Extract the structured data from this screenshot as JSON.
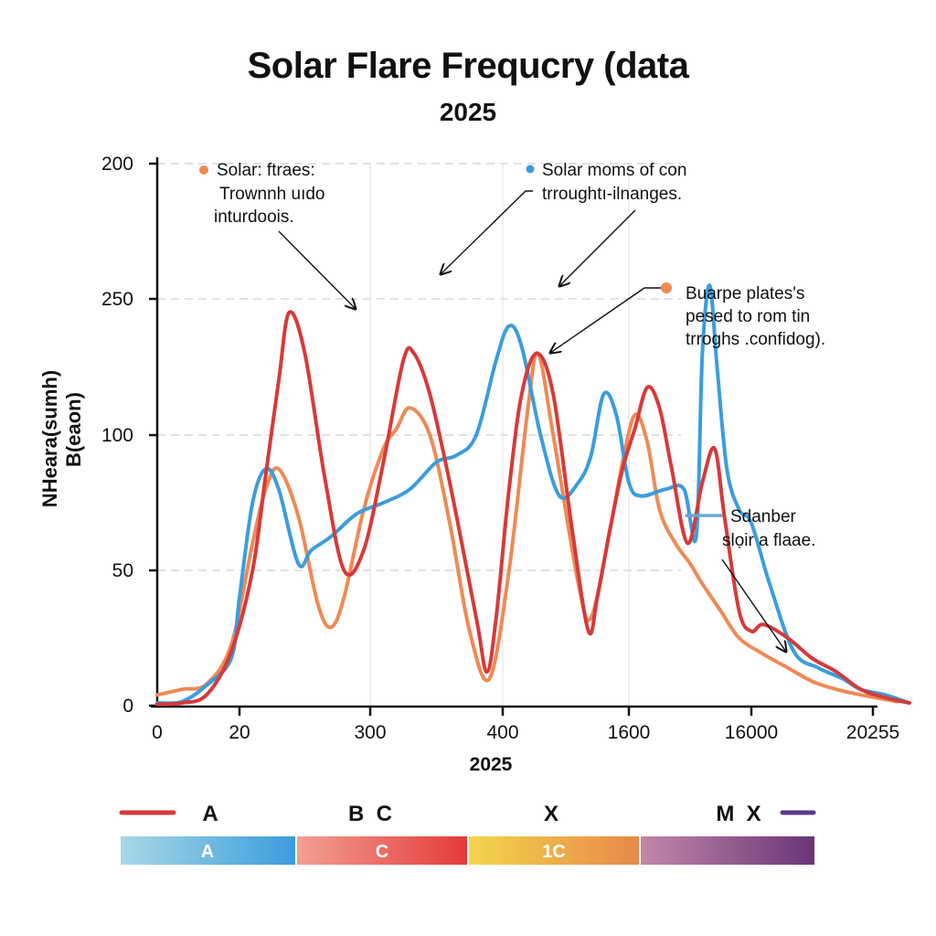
{
  "title": "Solar Flare Frequcry (data",
  "subtitle": "2025",
  "chart_data": {
    "type": "line",
    "title": "Solar Flare Frequcry (data",
    "subtitle": "2025",
    "xlabel": "2025",
    "ylabel_lines": [
      "NHeara(sumh)",
      "B(eaon)"
    ],
    "x_ticks": [
      "0",
      "20",
      "300",
      "400",
      "1600",
      "16000",
      "20255"
    ],
    "y_ticks": [
      "0",
      "50",
      "100",
      "250",
      "200"
    ],
    "axis_note": "Tick labels are non-monotonic; series points are given as [x_tick_index, y_tick_index] positions along each axis.",
    "grid": true,
    "xlim_index": [
      0,
      6.3
    ],
    "ylim_index": [
      0,
      4
    ],
    "series": [
      {
        "name": "Red",
        "color": "#d63a3a",
        "points": [
          [
            0,
            0.01
          ],
          [
            0.3,
            0.02
          ],
          [
            0.6,
            0.08
          ],
          [
            0.9,
            0.4
          ],
          [
            1.1,
            1.0
          ],
          [
            1.2,
            1.7
          ],
          [
            1.3,
            2.4
          ],
          [
            1.38,
            2.9
          ],
          [
            1.5,
            2.6
          ],
          [
            1.65,
            1.7
          ],
          [
            1.8,
            1.0
          ],
          [
            1.95,
            1.15
          ],
          [
            2.1,
            1.8
          ],
          [
            2.25,
            2.55
          ],
          [
            2.33,
            2.6
          ],
          [
            2.45,
            2.3
          ],
          [
            2.6,
            1.65
          ],
          [
            2.8,
            0.65
          ],
          [
            2.88,
            0.25
          ],
          [
            2.95,
            0.65
          ],
          [
            3.05,
            1.6
          ],
          [
            3.15,
            2.3
          ],
          [
            3.27,
            2.6
          ],
          [
            3.4,
            2.3
          ],
          [
            3.55,
            1.3
          ],
          [
            3.68,
            0.55
          ],
          [
            3.75,
            0.8
          ],
          [
            3.85,
            1.3
          ],
          [
            3.95,
            1.75
          ],
          [
            4.05,
            2.05
          ],
          [
            4.15,
            2.35
          ],
          [
            4.25,
            2.2
          ],
          [
            4.35,
            1.75
          ],
          [
            4.48,
            1.2
          ],
          [
            4.6,
            1.65
          ],
          [
            4.7,
            1.9
          ],
          [
            4.78,
            1.4
          ],
          [
            4.9,
            0.7
          ],
          [
            5.0,
            0.55
          ],
          [
            5.1,
            0.6
          ],
          [
            5.3,
            0.5
          ],
          [
            5.5,
            0.35
          ],
          [
            5.7,
            0.25
          ],
          [
            5.9,
            0.12
          ],
          [
            6.1,
            0.06
          ],
          [
            6.3,
            0.02
          ]
        ]
      },
      {
        "name": "Orange",
        "color": "#ee8a55",
        "points": [
          [
            0,
            0.08
          ],
          [
            0.3,
            0.12
          ],
          [
            0.6,
            0.16
          ],
          [
            0.9,
            0.45
          ],
          [
            1.1,
            1.2
          ],
          [
            1.2,
            1.6
          ],
          [
            1.3,
            1.75
          ],
          [
            1.45,
            1.4
          ],
          [
            1.6,
            0.75
          ],
          [
            1.7,
            0.58
          ],
          [
            1.8,
            0.8
          ],
          [
            1.95,
            1.45
          ],
          [
            2.1,
            1.9
          ],
          [
            2.2,
            2.05
          ],
          [
            2.3,
            2.2
          ],
          [
            2.45,
            2.0
          ],
          [
            2.6,
            1.35
          ],
          [
            2.75,
            0.55
          ],
          [
            2.9,
            0.2
          ],
          [
            3.05,
            1.0
          ],
          [
            3.2,
            2.2
          ],
          [
            3.28,
            2.6
          ],
          [
            3.4,
            2.0
          ],
          [
            3.6,
            0.9
          ],
          [
            3.7,
            0.65
          ],
          [
            3.85,
            1.3
          ],
          [
            3.95,
            1.8
          ],
          [
            4.05,
            2.15
          ],
          [
            4.15,
            1.95
          ],
          [
            4.25,
            1.45
          ],
          [
            4.38,
            1.2
          ],
          [
            4.5,
            1.05
          ],
          [
            4.6,
            0.9
          ],
          [
            4.75,
            0.7
          ],
          [
            4.9,
            0.5
          ],
          [
            5.1,
            0.38
          ],
          [
            5.3,
            0.28
          ],
          [
            5.5,
            0.18
          ],
          [
            5.7,
            0.12
          ],
          [
            5.9,
            0.08
          ],
          [
            6.2,
            0.03
          ]
        ]
      },
      {
        "name": "Blue",
        "color": "#3b9ddd",
        "points": [
          [
            0,
            0.02
          ],
          [
            0.3,
            0.03
          ],
          [
            0.6,
            0.15
          ],
          [
            0.9,
            0.35
          ],
          [
            1.0,
            0.8
          ],
          [
            1.1,
            1.5
          ],
          [
            1.2,
            1.75
          ],
          [
            1.3,
            1.6
          ],
          [
            1.45,
            1.05
          ],
          [
            1.55,
            1.15
          ],
          [
            1.7,
            1.25
          ],
          [
            1.9,
            1.42
          ],
          [
            2.1,
            1.5
          ],
          [
            2.3,
            1.6
          ],
          [
            2.5,
            1.8
          ],
          [
            2.65,
            1.85
          ],
          [
            2.8,
            2.0
          ],
          [
            2.95,
            2.55
          ],
          [
            3.05,
            2.8
          ],
          [
            3.15,
            2.65
          ],
          [
            3.3,
            2.0
          ],
          [
            3.45,
            1.55
          ],
          [
            3.6,
            1.65
          ],
          [
            3.7,
            1.85
          ],
          [
            3.8,
            2.3
          ],
          [
            3.9,
            2.15
          ],
          [
            4.0,
            1.65
          ],
          [
            4.1,
            1.55
          ],
          [
            4.3,
            1.6
          ],
          [
            4.45,
            1.6
          ],
          [
            4.55,
            1.25
          ],
          [
            4.6,
            2.6
          ],
          [
            4.66,
            3.1
          ],
          [
            4.72,
            2.5
          ],
          [
            4.8,
            1.75
          ],
          [
            4.9,
            1.45
          ],
          [
            5.0,
            1.35
          ],
          [
            5.15,
            0.9
          ],
          [
            5.35,
            0.4
          ],
          [
            5.55,
            0.28
          ],
          [
            5.75,
            0.2
          ],
          [
            5.9,
            0.12
          ],
          [
            6.1,
            0.08
          ],
          [
            6.3,
            0.02
          ]
        ]
      }
    ],
    "annotations": [
      {
        "lines": [
          "Solar: ftraes:",
          "Trownnh uıdo",
          "inturdoois."
        ],
        "marker_color": "#ee8a55"
      },
      {
        "lines": [
          "Solar moms of con",
          "trroughtı-ilnanges."
        ],
        "marker_color": "#3b9ddd"
      },
      {
        "lines": [
          "Buarpe plates's",
          "pesed to rom tin",
          "trroghs .confidog)."
        ],
        "marker_color": "#ee8a55"
      },
      {
        "lines": [
          "Sdanber",
          "slọir a flaae."
        ],
        "marker_color": "#6aa8cc"
      }
    ],
    "legend": {
      "placement": "bottom",
      "items": [
        {
          "label": "A",
          "color": "#d63a3a"
        },
        {
          "label": "B  C",
          "color": null
        },
        {
          "label": "X",
          "color": null
        },
        {
          "label": "M  X",
          "color": "#5a3a8a"
        }
      ],
      "bands": [
        {
          "label": "A",
          "from": "#a8d8e6",
          "to": "#3b9ddd"
        },
        {
          "label": "C",
          "from": "#f2a092",
          "to": "#e53a3a"
        },
        {
          "label": "1C",
          "from": "#f2d64a",
          "to": "#e8884a"
        },
        {
          "label": "",
          "from": "#c288a8",
          "to": "#6a3478"
        }
      ]
    }
  }
}
